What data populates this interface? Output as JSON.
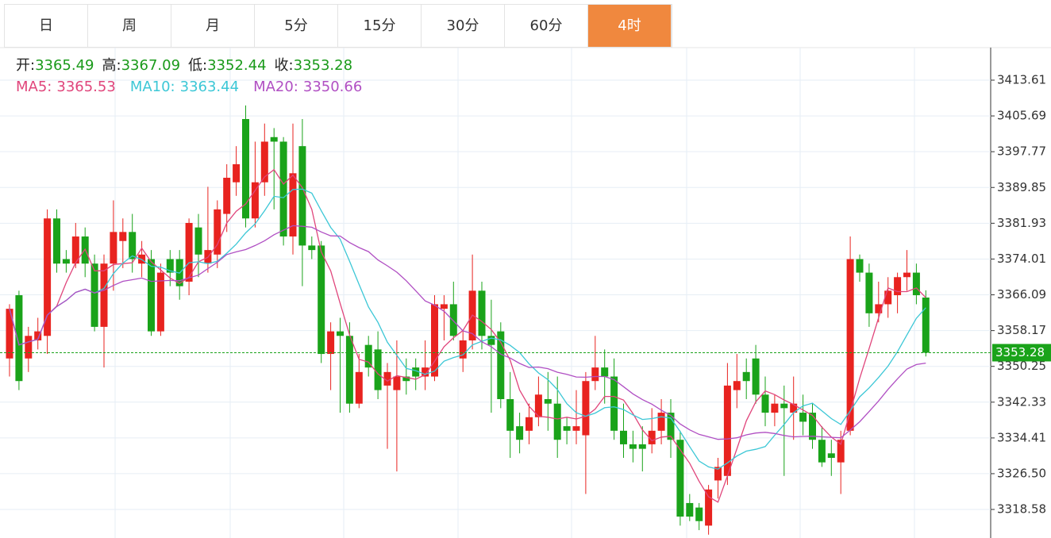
{
  "tabs": [
    "日",
    "周",
    "月",
    "5分",
    "15分",
    "30分",
    "60分",
    "4时"
  ],
  "active_tab": 7,
  "header": {
    "open_label": "开:",
    "open": "3365.49",
    "high_label": "高:",
    "high": "3367.09",
    "low_label": "低:",
    "low": "3352.44",
    "close_label": "收:",
    "close": "3353.28",
    "ma5_label": "MA5:",
    "ma5": "3365.53",
    "ma10_label": "MA10:",
    "ma10": "3363.44",
    "ma20_label": "MA20:",
    "ma20": "3350.66"
  },
  "chart_data": {
    "type": "candlestick",
    "up_color": "#e8231f",
    "down_color": "#1aa31a",
    "ylim": [
      3312.26,
      3420.81
    ],
    "yticks": [
      3413.61,
      3405.69,
      3397.77,
      3389.85,
      3381.93,
      3374.01,
      3366.09,
      3358.17,
      3350.25,
      3342.33,
      3334.41,
      {
        "value": 3326.5,
        "label": "3326.50"
      },
      3318.58
    ],
    "last_price": {
      "value": 3353.28,
      "label": "3353.28"
    },
    "open": [
      3352,
      3366,
      3352,
      3356,
      3357,
      3383,
      3374,
      3373,
      3379,
      3373,
      3359,
      3373,
      3378,
      3380,
      3373,
      3374,
      3358,
      3374,
      3374,
      3369,
      3381,
      3373,
      3375,
      3384,
      3391,
      3405,
      3383,
      3391,
      3401,
      3400,
      3379,
      3399,
      3377,
      3377,
      3353,
      3358,
      3357,
      3342,
      3355,
      3354,
      3346,
      3345,
      3348,
      3350,
      3348,
      3348,
      3363,
      3364,
      3352,
      3356,
      3367,
      3357,
      3358,
      3343,
      3337,
      3336,
      3339,
      3343,
      3342,
      3337,
      3336,
      3335,
      3347,
      3350,
      3348,
      3336,
      3333,
      3333,
      3333,
      3336,
      3340,
      3334,
      3320,
      3319,
      3315,
      3325,
      3326,
      3345,
      3349,
      3352,
      3344,
      3340,
      3342,
      3340,
      3340,
      3340,
      3334,
      3331,
      3329,
      3336,
      3374,
      3371,
      3362,
      3364,
      3366,
      3370,
      3371,
      3365.49
    ],
    "high": [
      3364,
      3367,
      3359,
      3361,
      3385,
      3385,
      3376,
      3382,
      3381,
      3375,
      3375,
      3387,
      3383,
      3384,
      3378,
      3376,
      3373,
      3376,
      3376,
      3383,
      3384,
      3390,
      3387,
      3395,
      3399,
      3408,
      3400,
      3404,
      3403,
      3401,
      3404,
      3405,
      3379,
      3378,
      3360,
      3361,
      3360,
      3353,
      3357,
      3358,
      3351,
      3356,
      3352,
      3352,
      3356,
      3366,
      3366,
      3369,
      3358,
      3375,
      3369,
      3365,
      3360,
      3349,
      3340,
      3342,
      3348,
      3349,
      3348,
      3339,
      3345,
      3349,
      3357,
      3354,
      3352,
      3342,
      3336,
      3337,
      3341,
      3343,
      3343,
      3336,
      3322,
      3320,
      3324,
      3330,
      3351,
      3353,
      3352,
      3355,
      3348,
      3344,
      3346,
      3348,
      3344,
      3342,
      3337,
      3334,
      3336,
      3379,
      3375,
      3373,
      3369,
      3370,
      3371,
      3376,
      3373,
      3367.09
    ],
    "low": [
      3348,
      3345,
      3349,
      3354,
      3353,
      3371,
      3371,
      3372,
      3370,
      3358,
      3350,
      3367,
      3372,
      3371,
      3370,
      3357,
      3357,
      3368,
      3365,
      3366,
      3370,
      3371,
      3372,
      3380,
      3388,
      3381,
      3381,
      3388,
      3385,
      3377,
      3375,
      3368,
      3374,
      3351,
      3345,
      3340,
      3340,
      3341,
      3348,
      3343,
      3332,
      3327,
      3344,
      3345,
      3345,
      3347,
      3356,
      3356,
      3349,
      3354,
      3354,
      3340,
      3341,
      3330,
      3331,
      3333,
      3337,
      3336,
      3330,
      3333,
      3333,
      3322,
      3345,
      3342,
      3334,
      3330,
      3329,
      3327,
      3331,
      3333,
      3330,
      3315,
      3316,
      3314,
      3313,
      3321,
      3324,
      3341,
      3343,
      3342,
      3337,
      3337,
      3326,
      3334,
      3335,
      3332,
      3328,
      3326,
      3322,
      3335,
      3369,
      3359,
      3360,
      3361,
      3362,
      3367,
      3364,
      3352.44
    ],
    "close": [
      3363,
      3347,
      3357,
      3358,
      3383,
      3373,
      3373,
      3379,
      3373,
      3359,
      3373,
      3380,
      3380,
      3374,
      3375,
      3358,
      3371,
      3371,
      3368,
      3382,
      3375,
      3376,
      3385,
      3392,
      3395,
      3383,
      3391,
      3400,
      3400,
      3379,
      3393,
      3377,
      3376,
      3353,
      3358,
      3357,
      3342,
      3349,
      3350,
      3345,
      3349,
      3348,
      3347,
      3348,
      3350,
      3364,
      3364,
      3357,
      3356,
      3367,
      3357,
      3355,
      3343,
      3336,
      3334,
      3339,
      3344,
      3342,
      3334,
      3336,
      3337,
      3347,
      3350,
      3348,
      3336,
      3333,
      3332,
      3332,
      3336,
      3340,
      3334,
      3317,
      3317,
      3316,
      3323,
      3328,
      3346,
      3347,
      3347,
      3344,
      3340,
      3342,
      3341,
      3342,
      3338,
      3334,
      3329,
      3330,
      3334,
      3374,
      3371,
      3362,
      3364,
      3367,
      3370,
      3371,
      3366,
      3353.28
    ]
  }
}
